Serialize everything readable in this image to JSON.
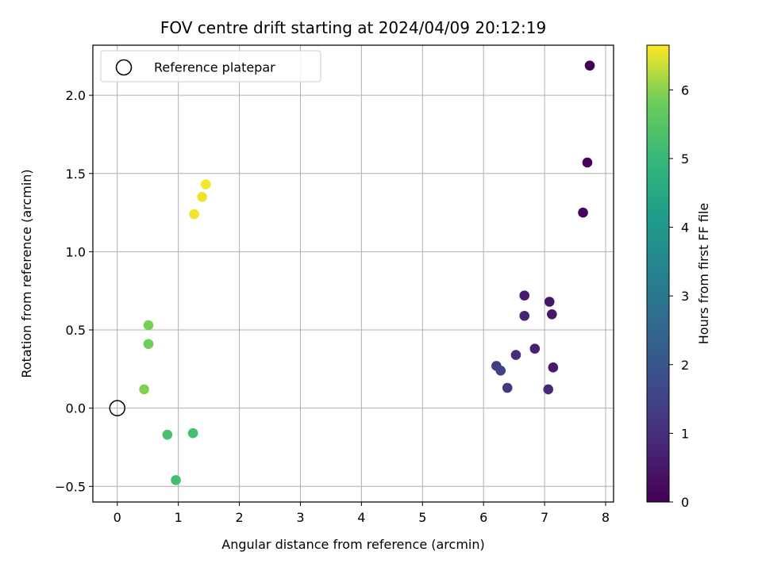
{
  "chart_data": {
    "type": "scatter",
    "title": "FOV centre drift starting at 2024/04/09 20:12:19",
    "xlabel": "Angular distance from reference (arcmin)",
    "ylabel": "Rotation from reference (arcmin)",
    "xlim": [
      -0.4,
      8.13
    ],
    "ylim": [
      -0.6,
      2.32
    ],
    "xticks": [
      0,
      1,
      2,
      3,
      4,
      5,
      6,
      7,
      8
    ],
    "xtick_labels": [
      "0",
      "1",
      "2",
      "3",
      "4",
      "5",
      "6",
      "7",
      "8"
    ],
    "yticks": [
      -0.5,
      0.0,
      0.5,
      1.0,
      1.5,
      2.0
    ],
    "ytick_labels": [
      "−0.5",
      "0.0",
      "0.5",
      "1.0",
      "1.5",
      "2.0"
    ],
    "grid": true,
    "legend": {
      "placement": "top-left",
      "entries": [
        "Reference platepar"
      ]
    },
    "reference_point": {
      "x": 0.0,
      "y": 0.0,
      "marker": "open-circle",
      "edgecolor": "#000000"
    },
    "colormap": "viridis",
    "colorbar": {
      "label": "Hours from first FF file",
      "range": [
        0,
        6.65
      ],
      "ticks": [
        0,
        1,
        2,
        3,
        4,
        5,
        6
      ],
      "tick_labels": [
        "0",
        "1",
        "2",
        "3",
        "4",
        "5",
        "6"
      ]
    },
    "points": [
      {
        "x": 7.74,
        "y": 2.19,
        "hours": 0.0
      },
      {
        "x": 7.7,
        "y": 1.57,
        "hours": 0.05
      },
      {
        "x": 7.63,
        "y": 1.25,
        "hours": 0.1
      },
      {
        "x": 6.67,
        "y": 0.72,
        "hours": 0.6
      },
      {
        "x": 7.08,
        "y": 0.68,
        "hours": 0.45
      },
      {
        "x": 6.67,
        "y": 0.59,
        "hours": 0.75
      },
      {
        "x": 7.12,
        "y": 0.6,
        "hours": 0.5
      },
      {
        "x": 6.84,
        "y": 0.38,
        "hours": 0.7
      },
      {
        "x": 6.53,
        "y": 0.34,
        "hours": 0.95
      },
      {
        "x": 7.14,
        "y": 0.26,
        "hours": 0.55
      },
      {
        "x": 6.21,
        "y": 0.27,
        "hours": 1.4
      },
      {
        "x": 6.28,
        "y": 0.24,
        "hours": 1.5
      },
      {
        "x": 6.39,
        "y": 0.13,
        "hours": 1.2
      },
      {
        "x": 7.06,
        "y": 0.12,
        "hours": 0.9
      },
      {
        "x": 1.45,
        "y": 1.43,
        "hours": 6.6
      },
      {
        "x": 1.39,
        "y": 1.35,
        "hours": 6.55
      },
      {
        "x": 1.26,
        "y": 1.24,
        "hours": 6.6
      },
      {
        "x": 0.51,
        "y": 0.53,
        "hours": 5.9
      },
      {
        "x": 0.51,
        "y": 0.41,
        "hours": 5.85
      },
      {
        "x": 0.44,
        "y": 0.12,
        "hours": 5.95
      },
      {
        "x": 0.82,
        "y": -0.17,
        "hours": 5.3
      },
      {
        "x": 1.24,
        "y": -0.16,
        "hours": 5.25
      },
      {
        "x": 0.96,
        "y": -0.46,
        "hours": 5.2
      }
    ]
  }
}
